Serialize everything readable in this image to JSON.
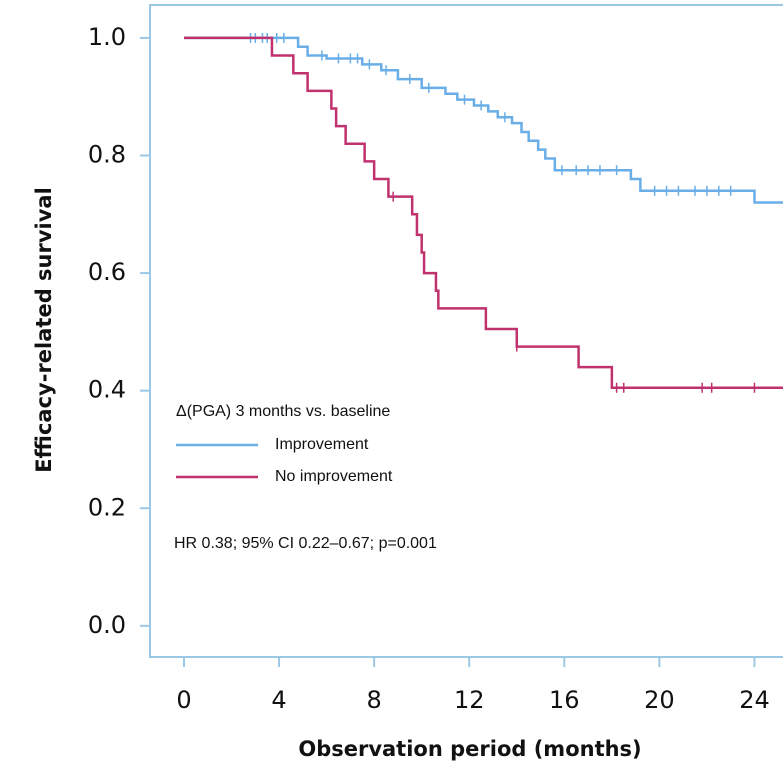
{
  "chart_data": {
    "type": "step",
    "y_label": "Efficacy-related survival",
    "x_label": "Observation period (months)",
    "legend_title": "Δ(PGA) 3 months vs. baseline",
    "annotation": "HR 0.38; 95% CI 0.22–0.67; p=0.001",
    "xlim": [
      -1.43,
      25.2
    ],
    "ylim": [
      -0.053,
      1.056
    ],
    "xticks": [
      0,
      4,
      8,
      12,
      16,
      20,
      24
    ],
    "yticks": [
      {
        "value": 0,
        "label": "0.0"
      },
      0.2,
      0.4,
      0.6,
      0.8,
      {
        "value": 1,
        "label": "1.0"
      }
    ],
    "series": [
      {
        "name": "Improvement",
        "color": "#6aaee8",
        "x": [
          0,
          4.8,
          5.2,
          6.0,
          7.5,
          8.3,
          9.0,
          10.0,
          11.0,
          11.5,
          12.2,
          12.8,
          13.2,
          13.8,
          14.2,
          14.5,
          14.9,
          15.2,
          15.6,
          18.8,
          19.2,
          24.0,
          25.2
        ],
        "values": [
          1.0,
          0.985,
          0.97,
          0.965,
          0.955,
          0.945,
          0.93,
          0.915,
          0.905,
          0.895,
          0.885,
          0.875,
          0.865,
          0.855,
          0.84,
          0.825,
          0.81,
          0.795,
          0.775,
          0.76,
          0.74,
          0.72,
          0.72
        ],
        "censored": [
          2.8,
          3.0,
          3.3,
          3.5,
          3.9,
          4.2,
          5.8,
          6.5,
          7.0,
          7.3,
          7.8,
          8.5,
          9.5,
          10.3,
          11.8,
          12.5,
          13.5,
          15.9,
          16.5,
          17.0,
          17.5,
          18.2,
          19.8,
          20.3,
          20.8,
          21.5,
          22.0,
          22.5,
          23.0
        ]
      },
      {
        "name": "No improvement",
        "color": "#c0326e",
        "x": [
          0,
          3.7,
          4.6,
          5.2,
          6.2,
          6.4,
          6.8,
          7.6,
          8.0,
          8.6,
          9.6,
          9.8,
          10.0,
          10.1,
          10.6,
          10.7,
          12.7,
          14.0,
          16.6,
          18.0,
          25.2
        ],
        "values": [
          1.0,
          0.97,
          0.94,
          0.91,
          0.88,
          0.85,
          0.82,
          0.79,
          0.76,
          0.73,
          0.7,
          0.665,
          0.635,
          0.6,
          0.57,
          0.54,
          0.505,
          0.475,
          0.44,
          0.405,
          0.405
        ],
        "censored": [
          8.8,
          14.0,
          18.2,
          18.5,
          21.8,
          22.2,
          24.0
        ]
      }
    ]
  }
}
